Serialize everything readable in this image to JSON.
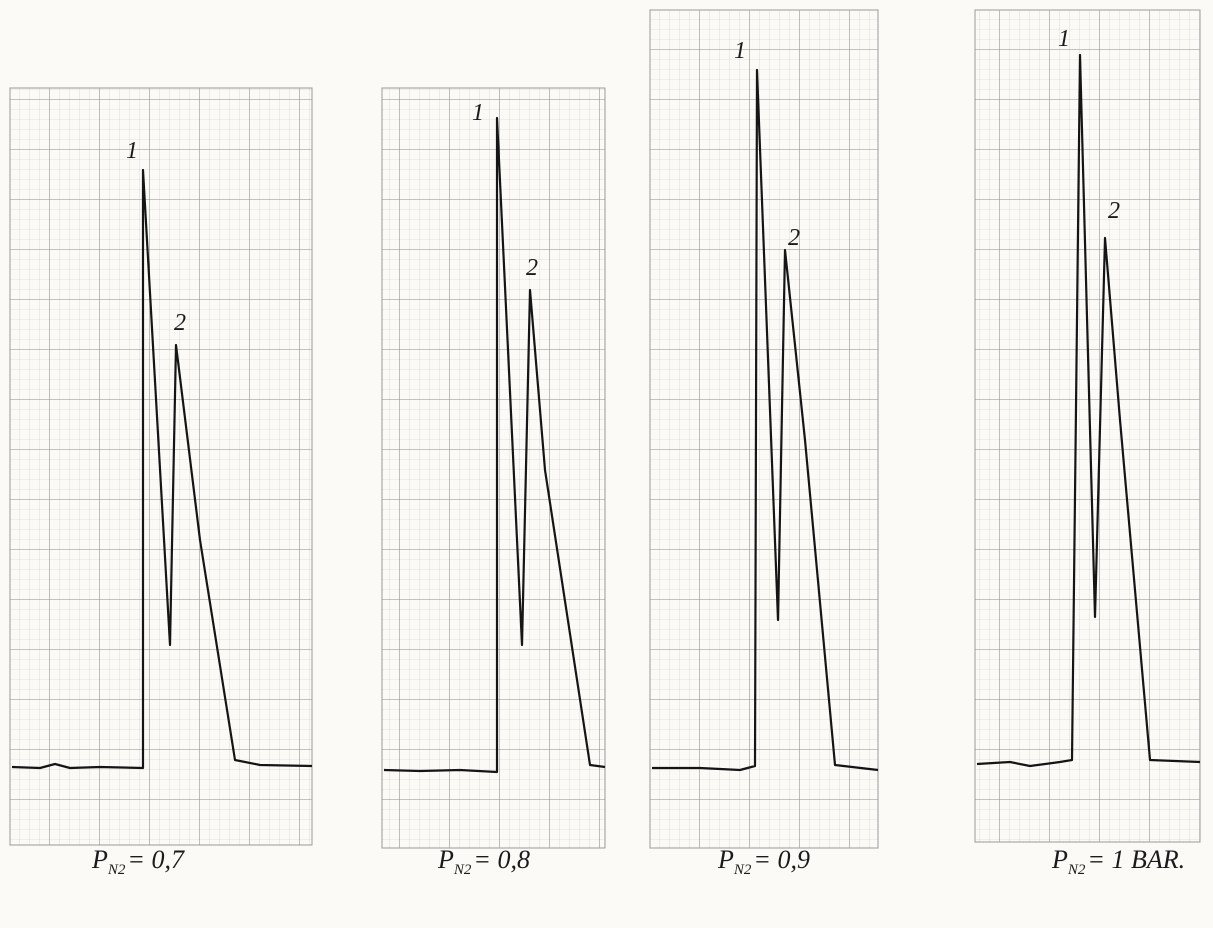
{
  "panels": [
    {
      "peak_labels": [
        "1",
        "2"
      ],
      "caption": {
        "symbol": "P",
        "subscript": "N2",
        "value": "= 0,7"
      }
    },
    {
      "peak_labels": [
        "1",
        "2"
      ],
      "caption": {
        "symbol": "P",
        "subscript": "N2",
        "value": "= 0,8"
      }
    },
    {
      "peak_labels": [
        "1",
        "2"
      ],
      "caption": {
        "symbol": "P",
        "subscript": "N2",
        "value": "= 0,9"
      }
    },
    {
      "peak_labels": [
        "1",
        "2"
      ],
      "caption": {
        "symbol": "P",
        "subscript": "N2",
        "value": "= 1 BAR."
      }
    }
  ]
}
